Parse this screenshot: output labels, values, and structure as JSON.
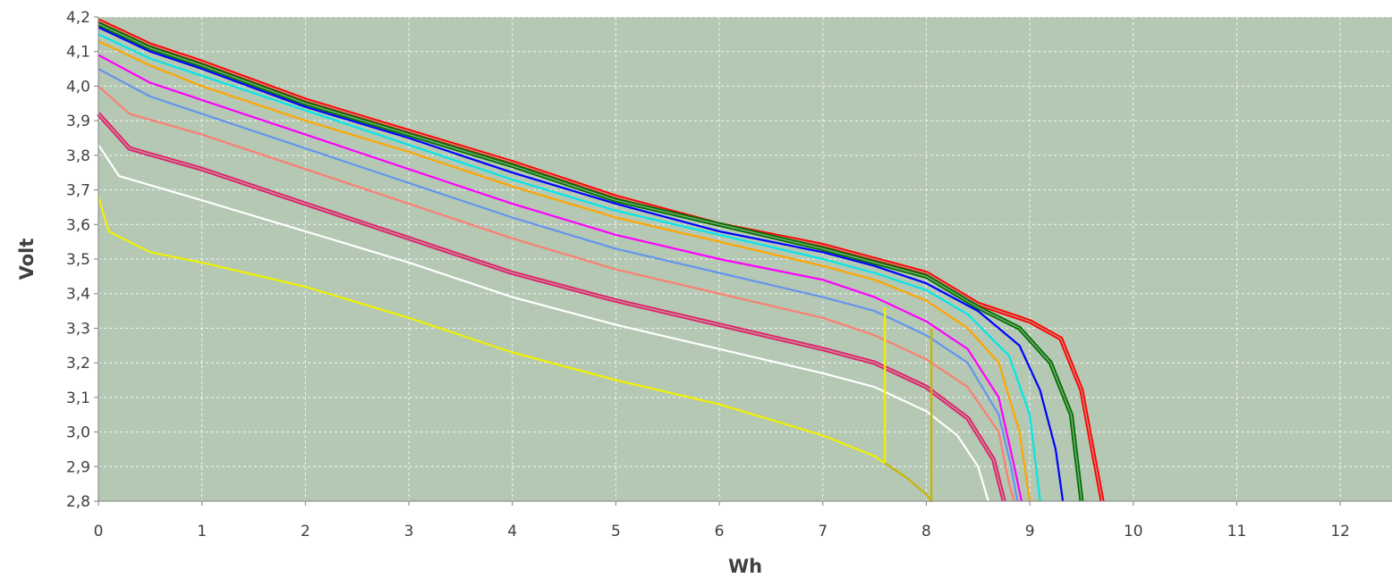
{
  "chart_data": {
    "type": "line",
    "title": "",
    "xlabel": "Wh",
    "ylabel": "Volt",
    "xlim": [
      0,
      12.5
    ],
    "ylim": [
      2.8,
      4.2
    ],
    "x_ticks": [
      0,
      1,
      2,
      3,
      4,
      5,
      6,
      7,
      8,
      9,
      10,
      11,
      12
    ],
    "y_ticks": [
      2.8,
      2.9,
      3.0,
      3.1,
      3.2,
      3.3,
      3.4,
      3.5,
      3.6,
      3.7,
      3.8,
      3.9,
      4.0,
      4.1,
      4.2
    ],
    "x_tick_labels": [
      "0",
      "1",
      "2",
      "3",
      "4",
      "5",
      "6",
      "7",
      "8",
      "9",
      "10",
      "11",
      "12"
    ],
    "y_tick_labels": [
      "2,8",
      "2,9",
      "3,0",
      "3,1",
      "3,2",
      "3,3",
      "3,4",
      "3,5",
      "3,6",
      "3,7",
      "3,8",
      "3,9",
      "4,0",
      "4,1",
      "4,2"
    ],
    "grid": true,
    "legend": "none",
    "colors": {
      "plot_background": "#b4c8b4",
      "grid": "#ffffff",
      "axis": "#808080"
    },
    "series": [
      {
        "color": "#ff0000",
        "double": true,
        "points": [
          [
            0,
            4.19
          ],
          [
            0.5,
            4.12
          ],
          [
            1,
            4.07
          ],
          [
            2,
            3.96
          ],
          [
            3,
            3.87
          ],
          [
            4,
            3.78
          ],
          [
            5,
            3.68
          ],
          [
            6,
            3.6
          ],
          [
            7,
            3.54
          ],
          [
            7.5,
            3.5
          ],
          [
            8,
            3.46
          ],
          [
            8.5,
            3.37
          ],
          [
            9,
            3.32
          ],
          [
            9.3,
            3.27
          ],
          [
            9.5,
            3.12
          ],
          [
            9.6,
            2.96
          ],
          [
            9.7,
            2.8
          ]
        ]
      },
      {
        "color": "#007000",
        "double": true,
        "points": [
          [
            0,
            4.18
          ],
          [
            0.5,
            4.11
          ],
          [
            1,
            4.06
          ],
          [
            2,
            3.95
          ],
          [
            3,
            3.86
          ],
          [
            4,
            3.77
          ],
          [
            5,
            3.67
          ],
          [
            6,
            3.6
          ],
          [
            7,
            3.53
          ],
          [
            7.5,
            3.49
          ],
          [
            8,
            3.45
          ],
          [
            8.5,
            3.36
          ],
          [
            8.9,
            3.3
          ],
          [
            9.2,
            3.2
          ],
          [
            9.4,
            3.05
          ],
          [
            9.5,
            2.8
          ]
        ]
      },
      {
        "color": "#0000ff",
        "double": false,
        "points": [
          [
            0,
            4.17
          ],
          [
            0.5,
            4.1
          ],
          [
            1,
            4.05
          ],
          [
            2,
            3.94
          ],
          [
            3,
            3.85
          ],
          [
            4,
            3.75
          ],
          [
            5,
            3.66
          ],
          [
            6,
            3.58
          ],
          [
            7,
            3.52
          ],
          [
            7.5,
            3.48
          ],
          [
            8,
            3.43
          ],
          [
            8.5,
            3.35
          ],
          [
            8.9,
            3.25
          ],
          [
            9.1,
            3.12
          ],
          [
            9.25,
            2.95
          ],
          [
            9.32,
            2.8
          ]
        ]
      },
      {
        "color": "#00e8e8",
        "double": false,
        "points": [
          [
            0,
            4.15
          ],
          [
            0.5,
            4.08
          ],
          [
            1,
            4.03
          ],
          [
            2,
            3.93
          ],
          [
            3,
            3.83
          ],
          [
            4,
            3.73
          ],
          [
            5,
            3.64
          ],
          [
            6,
            3.57
          ],
          [
            7,
            3.5
          ],
          [
            7.5,
            3.46
          ],
          [
            8,
            3.41
          ],
          [
            8.4,
            3.34
          ],
          [
            8.8,
            3.22
          ],
          [
            9,
            3.05
          ],
          [
            9.1,
            2.8
          ]
        ]
      },
      {
        "color": "#ffa500",
        "double": false,
        "points": [
          [
            0,
            4.13
          ],
          [
            0.5,
            4.06
          ],
          [
            1,
            4.0
          ],
          [
            2,
            3.9
          ],
          [
            3,
            3.81
          ],
          [
            4,
            3.71
          ],
          [
            5,
            3.62
          ],
          [
            6,
            3.55
          ],
          [
            7,
            3.48
          ],
          [
            7.5,
            3.44
          ],
          [
            8,
            3.38
          ],
          [
            8.4,
            3.3
          ],
          [
            8.7,
            3.2
          ],
          [
            8.9,
            3.0
          ],
          [
            9.0,
            2.8
          ]
        ]
      },
      {
        "color": "#ff00ff",
        "double": false,
        "points": [
          [
            0,
            4.09
          ],
          [
            0.5,
            4.01
          ],
          [
            1,
            3.96
          ],
          [
            2,
            3.86
          ],
          [
            3,
            3.76
          ],
          [
            4,
            3.66
          ],
          [
            5,
            3.57
          ],
          [
            6,
            3.5
          ],
          [
            7,
            3.44
          ],
          [
            7.5,
            3.39
          ],
          [
            8,
            3.32
          ],
          [
            8.4,
            3.24
          ],
          [
            8.7,
            3.1
          ],
          [
            8.85,
            2.9
          ],
          [
            8.92,
            2.8
          ]
        ]
      },
      {
        "color": "#6495ed",
        "double": false,
        "points": [
          [
            0,
            4.05
          ],
          [
            0.5,
            3.97
          ],
          [
            1,
            3.92
          ],
          [
            2,
            3.82
          ],
          [
            3,
            3.72
          ],
          [
            4,
            3.62
          ],
          [
            5,
            3.53
          ],
          [
            6,
            3.46
          ],
          [
            7,
            3.39
          ],
          [
            7.5,
            3.35
          ],
          [
            8,
            3.28
          ],
          [
            8.4,
            3.2
          ],
          [
            8.7,
            3.05
          ],
          [
            8.82,
            2.9
          ],
          [
            8.88,
            2.8
          ]
        ]
      },
      {
        "color": "#fa8072",
        "double": false,
        "points": [
          [
            0,
            4.0
          ],
          [
            0.3,
            3.92
          ],
          [
            1,
            3.86
          ],
          [
            2,
            3.76
          ],
          [
            3,
            3.66
          ],
          [
            4,
            3.56
          ],
          [
            5,
            3.47
          ],
          [
            6,
            3.4
          ],
          [
            7,
            3.33
          ],
          [
            7.5,
            3.28
          ],
          [
            8,
            3.21
          ],
          [
            8.4,
            3.13
          ],
          [
            8.7,
            3.0
          ],
          [
            8.8,
            2.85
          ],
          [
            8.85,
            2.8
          ]
        ]
      },
      {
        "color": "#e0206a",
        "double": true,
        "points": [
          [
            0,
            3.92
          ],
          [
            0.3,
            3.82
          ],
          [
            1,
            3.76
          ],
          [
            2,
            3.66
          ],
          [
            3,
            3.56
          ],
          [
            4,
            3.46
          ],
          [
            5,
            3.38
          ],
          [
            6,
            3.31
          ],
          [
            7,
            3.24
          ],
          [
            7.5,
            3.2
          ],
          [
            8,
            3.13
          ],
          [
            8.4,
            3.04
          ],
          [
            8.65,
            2.92
          ],
          [
            8.75,
            2.8
          ]
        ]
      },
      {
        "color": "#ffffff",
        "double": false,
        "points": [
          [
            0,
            3.83
          ],
          [
            0.2,
            3.74
          ],
          [
            1,
            3.67
          ],
          [
            2,
            3.58
          ],
          [
            3,
            3.49
          ],
          [
            4,
            3.39
          ],
          [
            5,
            3.31
          ],
          [
            6,
            3.24
          ],
          [
            7,
            3.17
          ],
          [
            7.5,
            3.13
          ],
          [
            8,
            3.06
          ],
          [
            8.3,
            2.99
          ],
          [
            8.5,
            2.9
          ],
          [
            8.6,
            2.8
          ]
        ]
      },
      {
        "color": "#f0f000",
        "double": false,
        "points": [
          [
            0,
            3.68
          ],
          [
            0.1,
            3.58
          ],
          [
            0.5,
            3.52
          ],
          [
            1,
            3.49
          ],
          [
            2,
            3.42
          ],
          [
            3,
            3.33
          ],
          [
            4,
            3.23
          ],
          [
            5,
            3.15
          ],
          [
            6,
            3.08
          ],
          [
            7,
            2.99
          ],
          [
            7.5,
            2.93
          ],
          [
            7.6,
            2.91
          ],
          [
            7.6,
            3.36
          ]
        ]
      },
      {
        "color": "#c8b400",
        "double": false,
        "points": [
          [
            7.6,
            2.91
          ],
          [
            7.8,
            2.87
          ],
          [
            8.0,
            2.82
          ],
          [
            8.05,
            2.8
          ],
          [
            8.05,
            3.3
          ]
        ]
      }
    ]
  }
}
